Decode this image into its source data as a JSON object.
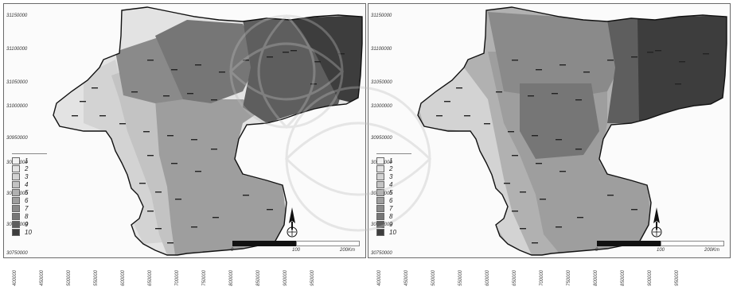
{
  "figure": {
    "y_tick_labels": [
      "31150000",
      "31100000",
      "31050000",
      "31000000",
      "30950000",
      "30900000",
      "30850000",
      "30800000",
      "30750000"
    ],
    "x_tick_labels": [
      "400000",
      "450000",
      "500000",
      "550000",
      "600000",
      "650000",
      "700000",
      "750000",
      "800000",
      "850000",
      "900000",
      "950000"
    ],
    "legend_items": [
      "1",
      "2",
      "3",
      "4",
      "5",
      "6",
      "7",
      "8",
      "9",
      "10"
    ],
    "legend_colors": [
      "#f1f1f1",
      "#e3e3e3",
      "#d3d3d3",
      "#c3c3c3",
      "#b1b1b1",
      "#9e9e9e",
      "#8a8a8a",
      "#767676",
      "#5e5e5e",
      "#3d3d3d"
    ],
    "scale_labels": [
      "0",
      "100",
      "200Km"
    ],
    "north_arrow_icon": "north-arrow-icon"
  },
  "maps": [
    {
      "name": "left-map",
      "zones": [
        {
          "class": 2,
          "color": "#e3e3e3"
        },
        {
          "class": 3,
          "color": "#d3d3d3"
        },
        {
          "class": 4,
          "color": "#c3c3c3"
        },
        {
          "class": 6,
          "color": "#9e9e9e"
        },
        {
          "class": 7,
          "color": "#8a8a8a"
        },
        {
          "class": 8,
          "color": "#767676"
        },
        {
          "class": 9,
          "color": "#5e5e5e"
        },
        {
          "class": 10,
          "color": "#3d3d3d"
        }
      ]
    },
    {
      "name": "right-map",
      "zones": [
        {
          "class": 3,
          "color": "#d3d3d3"
        },
        {
          "class": 5,
          "color": "#b1b1b1"
        },
        {
          "class": 6,
          "color": "#9e9e9e"
        },
        {
          "class": 7,
          "color": "#8a8a8a"
        },
        {
          "class": 8,
          "color": "#767676"
        },
        {
          "class": 9,
          "color": "#5e5e5e"
        },
        {
          "class": 10,
          "color": "#3d3d3d"
        }
      ]
    }
  ]
}
